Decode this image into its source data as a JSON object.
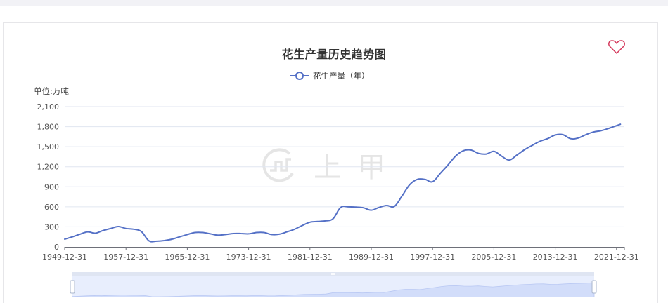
{
  "chart": {
    "title": "花生产量历史趋势图",
    "legend_label": "花生产量（年）",
    "unit_label": "单位:万吨",
    "watermark_text": "上甲",
    "favorite_icon": "heart-outline-icon",
    "colors": {
      "line": "#5470c6",
      "grid": "#e0e6f1",
      "axis": "#6e7079",
      "favorite": "#d4375a",
      "slider_fill": "#d6e1fb",
      "slider_bar": "#dfe5f2"
    }
  },
  "chart_data": {
    "type": "line",
    "title": "花生产量历史趋势图",
    "xlabel": "",
    "ylabel": "单位:万吨",
    "ylim": [
      0,
      2100
    ],
    "yticks": [
      "0",
      "300",
      "600",
      "900",
      "1,200",
      "1,500",
      "1,800",
      "2,100"
    ],
    "xticks": [
      "1949-12-31",
      "1957-12-31",
      "1965-12-31",
      "1973-12-31",
      "1981-12-31",
      "1989-12-31",
      "1997-12-31",
      "2005-12-31",
      "2013-12-31",
      "2021-12-31"
    ],
    "grid": true,
    "legend_position": "top-center",
    "series": [
      {
        "name": "花生产量（年）",
        "x": [
          1949,
          1950,
          1951,
          1952,
          1953,
          1954,
          1955,
          1956,
          1957,
          1958,
          1959,
          1960,
          1961,
          1962,
          1963,
          1964,
          1965,
          1966,
          1967,
          1968,
          1969,
          1970,
          1971,
          1972,
          1973,
          1974,
          1975,
          1976,
          1977,
          1978,
          1979,
          1980,
          1981,
          1982,
          1983,
          1984,
          1985,
          1986,
          1987,
          1988,
          1989,
          1990,
          1991,
          1992,
          1993,
          1994,
          1995,
          1996,
          1997,
          1998,
          1999,
          2000,
          2001,
          2002,
          2003,
          2004,
          2005,
          2006,
          2007,
          2008,
          2009,
          2010,
          2011,
          2012,
          2013,
          2014,
          2015,
          2016,
          2017,
          2018,
          2019,
          2020,
          2021
        ],
        "values": [
          115,
          150,
          190,
          225,
          205,
          245,
          275,
          305,
          275,
          265,
          230,
          90,
          85,
          95,
          115,
          150,
          185,
          215,
          215,
          195,
          175,
          185,
          200,
          200,
          195,
          215,
          215,
          185,
          190,
          225,
          265,
          320,
          370,
          380,
          390,
          420,
          590,
          600,
          595,
          585,
          550,
          590,
          620,
          605,
          760,
          930,
          1010,
          1010,
          975,
          1100,
          1225,
          1360,
          1440,
          1450,
          1400,
          1390,
          1430,
          1360,
          1300,
          1375,
          1455,
          1520,
          1580,
          1620,
          1675,
          1680,
          1620,
          1630,
          1680,
          1720,
          1740,
          1775,
          1835
        ]
      }
    ]
  },
  "data_zoom": {
    "start_percent": 0,
    "end_percent": 100
  }
}
